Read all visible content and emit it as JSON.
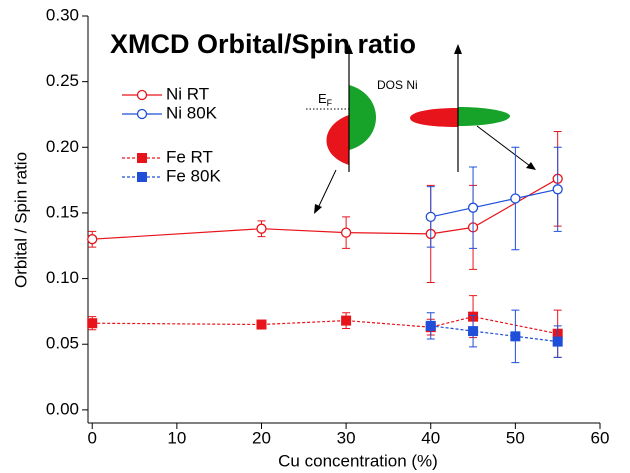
{
  "chart_data": {
    "type": "line",
    "title": "XMCD Orbital/Spin ratio",
    "x_label": "Cu concentration (%)",
    "y_label": "Orbital / Spin ratio",
    "annotations": {
      "dos": "DOS Ni",
      "fermi": "E",
      "fermi_sub": "F"
    },
    "xlim": [
      -0.5,
      60
    ],
    "ylim": [
      -0.01,
      0.3
    ],
    "xticks": [
      0,
      10,
      20,
      30,
      40,
      50,
      60
    ],
    "yticks": [
      {
        "value": 0,
        "label": "0.00"
      },
      {
        "value": 0.05,
        "label": "0.05"
      },
      {
        "value": 0.1,
        "label": "0.10"
      },
      {
        "value": 0.15,
        "label": "0.15"
      },
      {
        "value": 0.2,
        "label": "0.20"
      },
      {
        "value": 0.25,
        "label": "0.25"
      },
      {
        "value": 0.3,
        "label": "0.30"
      }
    ],
    "series": [
      {
        "name": "Ni RT",
        "color": "#e8141b",
        "marker": "circle",
        "dashed": false,
        "x": [
          0,
          20,
          30,
          40,
          45,
          55
        ],
        "values": [
          0.13,
          0.138,
          0.135,
          0.134,
          0.139,
          0.176
        ],
        "errors": [
          0.006,
          0.006,
          0.012,
          0.037,
          0.032,
          0.036
        ]
      },
      {
        "name": "Ni 80K",
        "color": "#1f4fd8",
        "marker": "circle",
        "dashed": false,
        "x": [
          40,
          45,
          50,
          55
        ],
        "values": [
          0.147,
          0.154,
          0.161,
          0.168
        ],
        "errors": [
          0.023,
          0.031,
          0.039,
          0.032
        ]
      },
      {
        "name": "Fe RT",
        "color": "#e8141b",
        "marker": "square",
        "dashed": true,
        "x": [
          0,
          20,
          30,
          40,
          45,
          55
        ],
        "values": [
          0.066,
          0.065,
          0.068,
          0.063,
          0.071,
          0.058
        ],
        "errors": [
          0.005,
          0.003,
          0.006,
          0.006,
          0.016,
          0.018
        ]
      },
      {
        "name": "Fe 80K",
        "color": "#1f4fd8",
        "marker": "square",
        "dashed": true,
        "x": [
          40,
          45,
          50,
          55
        ],
        "values": [
          0.064,
          0.06,
          0.056,
          0.052
        ],
        "errors": [
          0.01,
          0.012,
          0.02,
          0.012
        ]
      }
    ]
  }
}
